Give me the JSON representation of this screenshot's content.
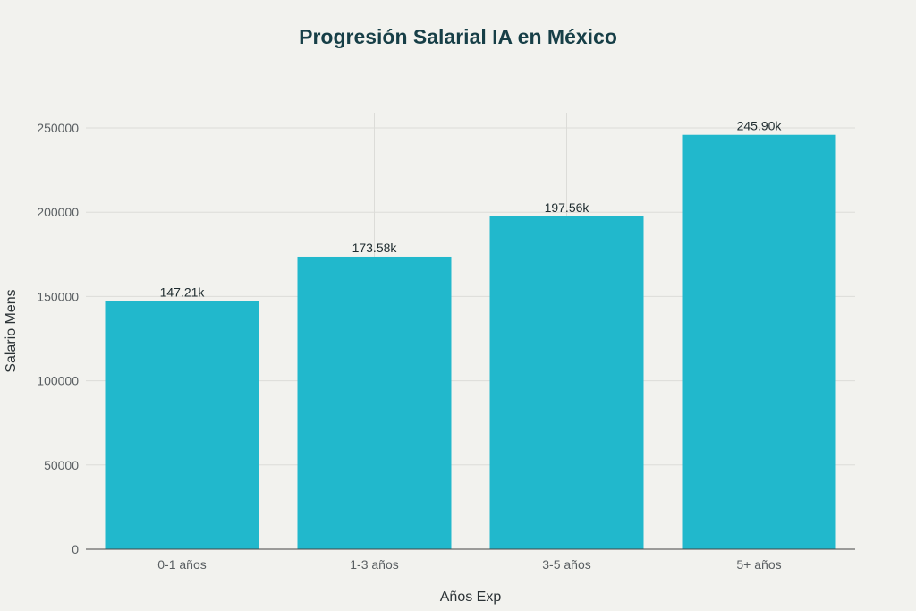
{
  "chart_data": {
    "type": "bar",
    "title": "Progresión Salarial IA en México",
    "xlabel": "Años Exp",
    "ylabel": "Salario Mens",
    "categories": [
      "0-1 años",
      "1-3 años",
      "3-5 años",
      "5+ años"
    ],
    "values": [
      147210,
      173580,
      197560,
      245900
    ],
    "data_labels": [
      "147.21k",
      "173.58k",
      "197.56k",
      "245.90k"
    ],
    "ylim": [
      0,
      260000
    ],
    "yticks": [
      0,
      50000,
      100000,
      150000,
      200000,
      250000
    ],
    "ytick_labels": [
      "0",
      "50000",
      "100000",
      "150000",
      "200000",
      "250000"
    ],
    "grid": true,
    "colors": {
      "bar": "#21b8cc",
      "grid": "#dcdcd8",
      "axis": "#444444",
      "background": "#f2f2ee"
    }
  }
}
